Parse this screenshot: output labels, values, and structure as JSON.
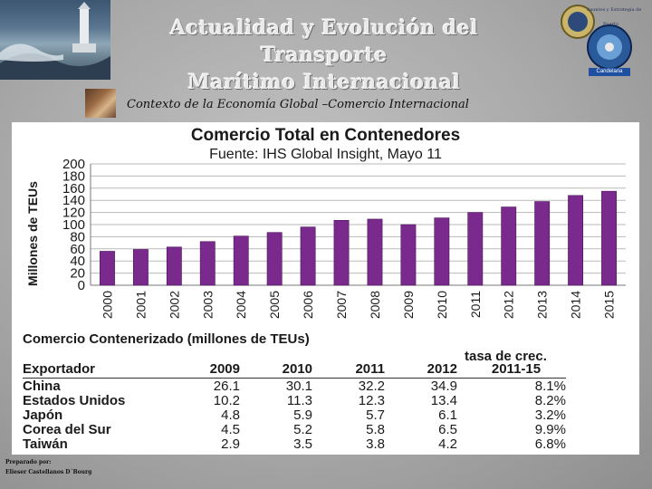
{
  "header": {
    "title": "Actualidad y Evolución del Transporte Marítimo Internacional",
    "title_line1": "Actualidad y Evolución del Transporte",
    "title_line2": "Marítimo Internacional",
    "subtitle": "Contexto de la Economía Global –Comercio Internacional",
    "logo_text": "Asuntos y Estrategia de",
    "logo_text2": "Puerto",
    "logo_label": "Candelaria"
  },
  "chart_data": {
    "type": "bar",
    "title": "Comercio Total en Contenedores",
    "subtitle": "Fuente: IHS Global Insight,  Mayo 11",
    "ylabel": "Millones de TEUs",
    "xlabel": "",
    "categories": [
      "2000",
      "2001",
      "2002",
      "2003",
      "2004",
      "2005",
      "2006",
      "2007",
      "2008",
      "2009",
      "2010",
      "2011",
      "2012",
      "2013",
      "2014",
      "2015"
    ],
    "values": [
      56,
      59,
      63,
      72,
      81,
      87,
      96,
      107,
      109,
      100,
      111,
      120,
      129,
      138,
      148,
      155
    ],
    "ylim": [
      0,
      200
    ],
    "yticks": [
      "200",
      "180",
      "160",
      "140",
      "120",
      "100",
      "80",
      "60",
      "40",
      "20",
      "0"
    ],
    "grid": true,
    "bar_color": "#7a2a8c"
  },
  "table": {
    "caption": "Comercio Contenerizado (millones de TEUs)",
    "growth_header": "tasa de crec.",
    "columns": [
      "Exportador",
      "2009",
      "2010",
      "2011",
      "2012",
      "2011-15"
    ],
    "rows": [
      {
        "name": "China",
        "v2009": "26.1",
        "v2010": "30.1",
        "v2011": "32.2",
        "v2012": "34.9",
        "growth": "8.1%"
      },
      {
        "name": "Estados Unidos",
        "v2009": "10.2",
        "v2010": "11.3",
        "v2011": "12.3",
        "v2012": "13.4",
        "growth": "8.2%"
      },
      {
        "name": "Japón",
        "v2009": "4.8",
        "v2010": "5.9",
        "v2011": "5.7",
        "v2012": "6.1",
        "growth": "3.2%"
      },
      {
        "name": "Corea del Sur",
        "v2009": "4.5",
        "v2010": "5.2",
        "v2011": "5.8",
        "v2012": "6.5",
        "growth": "9.9%"
      },
      {
        "name": "Taiwán",
        "v2009": "2.9",
        "v2010": "3.5",
        "v2011": "3.8",
        "v2012": "4.2",
        "growth": "6.8%"
      }
    ]
  },
  "footer": {
    "line1": "Preparado por:",
    "line2": "Elieser Castellanos D´Bourg"
  }
}
